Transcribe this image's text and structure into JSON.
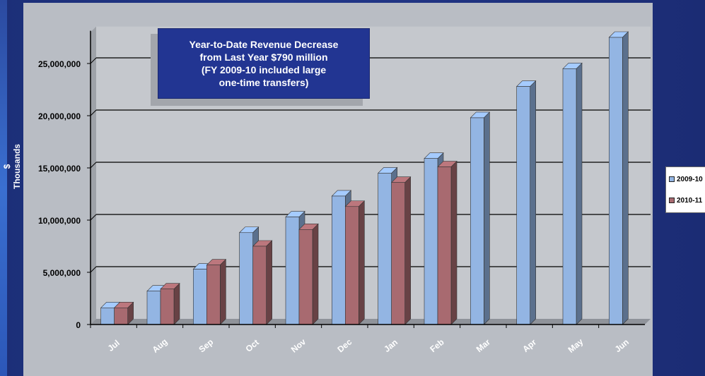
{
  "chart_data": {
    "type": "bar",
    "title": "",
    "annotation": [
      "Year-to-Date Revenue Decrease",
      "from Last Year $790 million",
      "(FY 2009-10 included large",
      "one-time transfers)"
    ],
    "ylabel": "$ Thousands",
    "xlabel": "",
    "ylim": [
      0,
      28000000
    ],
    "yticks": [
      0,
      5000000,
      10000000,
      15000000,
      20000000,
      25000000
    ],
    "ytick_labels": [
      "0",
      "5,000,000",
      "10,000,000",
      "15,000,000",
      "20,000,000",
      "25,000,000"
    ],
    "categories": [
      "Jul",
      "Aug",
      "Sep",
      "Oct",
      "Nov",
      "Dec",
      "Jan",
      "Feb",
      "Mar",
      "Apr",
      "May",
      "Jun"
    ],
    "series": [
      {
        "name": "2009-10",
        "color": "#93b5e3",
        "values": [
          1600000,
          3200000,
          5300000,
          8800000,
          10300000,
          12300000,
          14500000,
          15900000,
          19800000,
          22800000,
          24500000,
          27500000
        ]
      },
      {
        "name": "2010-11",
        "color": "#a86a70",
        "values": [
          1600000,
          3400000,
          5700000,
          7500000,
          9100000,
          11300000,
          13600000,
          15100000,
          null,
          null,
          null,
          null
        ]
      }
    ],
    "grid": true,
    "legend_position": "right",
    "bar_style": "3d"
  }
}
